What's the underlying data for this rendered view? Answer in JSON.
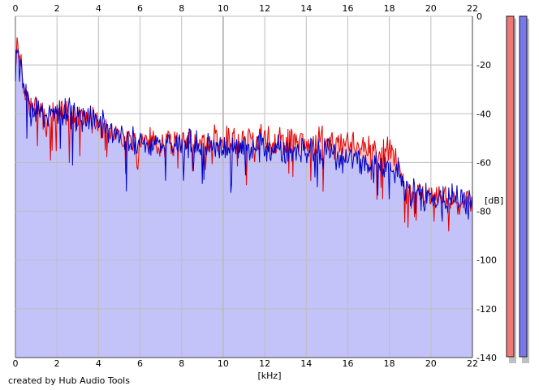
{
  "credit": "created by Hub Audio Tools",
  "chart_data": {
    "type": "area",
    "title": "",
    "xlabel": "[kHz]",
    "ylabel": "[dB]",
    "xlim": [
      0,
      22
    ],
    "ylim": [
      -140,
      0
    ],
    "x_ticks": [
      0,
      2,
      4,
      6,
      8,
      10,
      12,
      14,
      16,
      18,
      20,
      22
    ],
    "y_ticks": [
      0,
      -20,
      -40,
      -60,
      -80,
      -100,
      -120,
      -140
    ],
    "grid": true,
    "colors": {
      "plot_background": "#ffffff",
      "grid": "#bdbdbd",
      "fill": "#c3c3fa",
      "difference_fill": "#f6c4c4",
      "channel_1": "#e60000",
      "channel_2": "#0000c8",
      "meter_1": "#ee7777",
      "meter_2": "#7777ee",
      "meter_shadow": "#bfbfbf"
    },
    "series": [
      {
        "color": "#e60000",
        "x": [
          0,
          0.1,
          0.2,
          0.3,
          0.5,
          0.75,
          1,
          1.5,
          2,
          2.5,
          3,
          3.5,
          4,
          4.5,
          5,
          5.5,
          6,
          6.5,
          7,
          7.5,
          8,
          8.5,
          9,
          9.5,
          10,
          10.5,
          11,
          11.5,
          12,
          12.5,
          13,
          13.5,
          14,
          14.5,
          15,
          15.5,
          16,
          16.5,
          17,
          17.5,
          18,
          18.3,
          18.6,
          18.8,
          19,
          19.5,
          20,
          20.5,
          21,
          21.5,
          22
        ],
        "y": [
          -22,
          -10,
          -16,
          -24,
          -32,
          -36,
          -39,
          -41,
          -40,
          -40,
          -41,
          -42,
          -43,
          -46,
          -48,
          -50,
          -51,
          -51,
          -52,
          -52,
          -51,
          -52,
          -51,
          -51,
          -51,
          -51,
          -51,
          -51,
          -50,
          -51,
          -51,
          -51,
          -51,
          -51,
          -51,
          -51,
          -52,
          -53,
          -54,
          -55,
          -56,
          -57,
          -65,
          -72,
          -73,
          -74,
          -74,
          -75,
          -75,
          -76,
          -76
        ]
      },
      {
        "color": "#0000c8",
        "x": [
          0,
          0.1,
          0.2,
          0.3,
          0.5,
          0.75,
          1,
          1.5,
          2,
          2.5,
          3,
          3.5,
          4,
          4.5,
          5,
          5.5,
          6,
          6.5,
          7,
          7.5,
          8,
          8.5,
          9,
          9.5,
          10,
          10.5,
          11,
          11.5,
          12,
          12.5,
          13,
          13.5,
          14,
          14.5,
          15,
          15.5,
          16,
          16.5,
          17,
          17.5,
          18,
          18.3,
          18.6,
          18.8,
          19,
          19.5,
          20,
          20.5,
          21,
          21.5,
          22
        ],
        "y": [
          -22,
          -10,
          -16,
          -24,
          -32,
          -36,
          -39,
          -41,
          -40,
          -40,
          -41,
          -42,
          -43,
          -46,
          -49,
          -51,
          -52,
          -52,
          -53,
          -53,
          -52,
          -53,
          -53,
          -53,
          -54,
          -54,
          -55,
          -55,
          -54,
          -55,
          -55,
          -55,
          -55,
          -55,
          -56,
          -57,
          -58,
          -59,
          -60,
          -61,
          -62,
          -63,
          -67,
          -72,
          -73,
          -74,
          -74,
          -75,
          -75,
          -76,
          -76
        ]
      }
    ]
  }
}
